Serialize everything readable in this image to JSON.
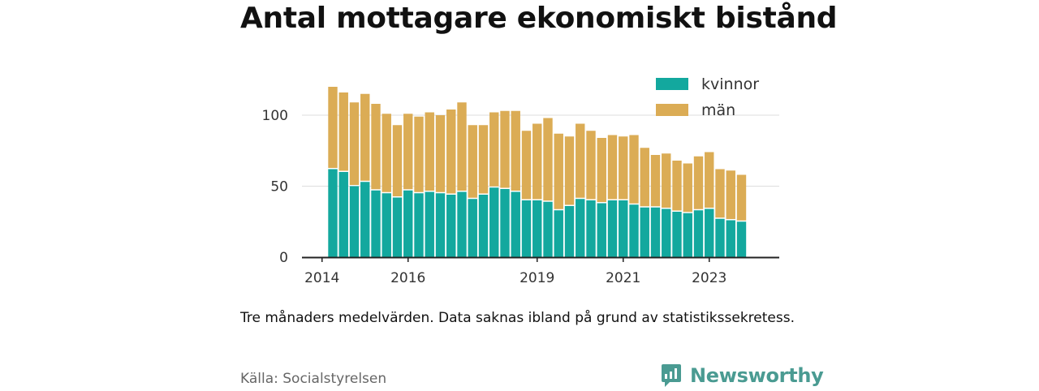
{
  "title": "Antal mottagare ekonomiskt bistånd",
  "note": "Tre månaders medelvärden. Data saknas ibland på grund av statistikssekretess.",
  "source": "Källa: Socialstyrelsen",
  "brand": {
    "name": "Newsworthy",
    "icon": "newsworthy-logo-icon",
    "color": "#4a9b92"
  },
  "colors": {
    "kvinnor": "#13a89e",
    "man": "#dbac55",
    "axis": "#222222",
    "grid": "#dddddd",
    "text": "#333333"
  },
  "chart_data": {
    "type": "bar",
    "stacked": true,
    "title": "Antal mottagare ekonomiskt bistånd",
    "xlabel": "",
    "ylabel": "",
    "ylim": [
      0,
      120
    ],
    "yticks": [
      0,
      50,
      100
    ],
    "xticks": [
      {
        "label": "2014",
        "date": "2014-03"
      },
      {
        "label": "2016",
        "date": "2016-03"
      },
      {
        "label": "2019",
        "date": "2019-03"
      },
      {
        "label": "2021",
        "date": "2021-03"
      },
      {
        "label": "2023",
        "date": "2023-03"
      }
    ],
    "x": [
      "2014-06",
      "2014-09",
      "2014-12",
      "2015-03",
      "2015-06",
      "2015-09",
      "2015-12",
      "2016-03",
      "2016-06",
      "2016-09",
      "2016-12",
      "2017-03",
      "2017-06",
      "2017-09",
      "2017-12",
      "2018-03",
      "2018-06",
      "2018-09",
      "2018-12",
      "2019-03",
      "2019-06",
      "2019-09",
      "2019-12",
      "2020-03",
      "2020-06",
      "2020-09",
      "2020-12",
      "2021-03",
      "2021-06",
      "2021-09",
      "2021-12",
      "2022-03",
      "2022-06",
      "2022-09",
      "2022-12",
      "2023-03",
      "2023-06",
      "2023-09",
      "2023-12"
    ],
    "legend": {
      "position": "top-right",
      "entries": [
        "kvinnor",
        "män"
      ]
    },
    "grid": true,
    "series": [
      {
        "name": "kvinnor",
        "color": "#13a89e",
        "values": [
          62,
          60,
          50,
          53,
          47,
          45,
          42,
          47,
          45,
          46,
          45,
          44,
          46,
          41,
          44,
          49,
          48,
          46,
          40,
          40,
          39,
          33,
          36,
          41,
          40,
          38,
          40,
          40,
          37,
          35,
          35,
          34,
          32,
          31,
          33,
          34,
          27,
          26,
          25
        ]
      },
      {
        "name": "män",
        "color": "#dbac55",
        "values": [
          58,
          56,
          59,
          62,
          61,
          56,
          51,
          54,
          54,
          56,
          55,
          60,
          63,
          52,
          49,
          53,
          55,
          57,
          49,
          54,
          59,
          54,
          49,
          53,
          49,
          46,
          46,
          45,
          49,
          42,
          37,
          39,
          36,
          35,
          38,
          40,
          35,
          35,
          33
        ]
      }
    ]
  }
}
